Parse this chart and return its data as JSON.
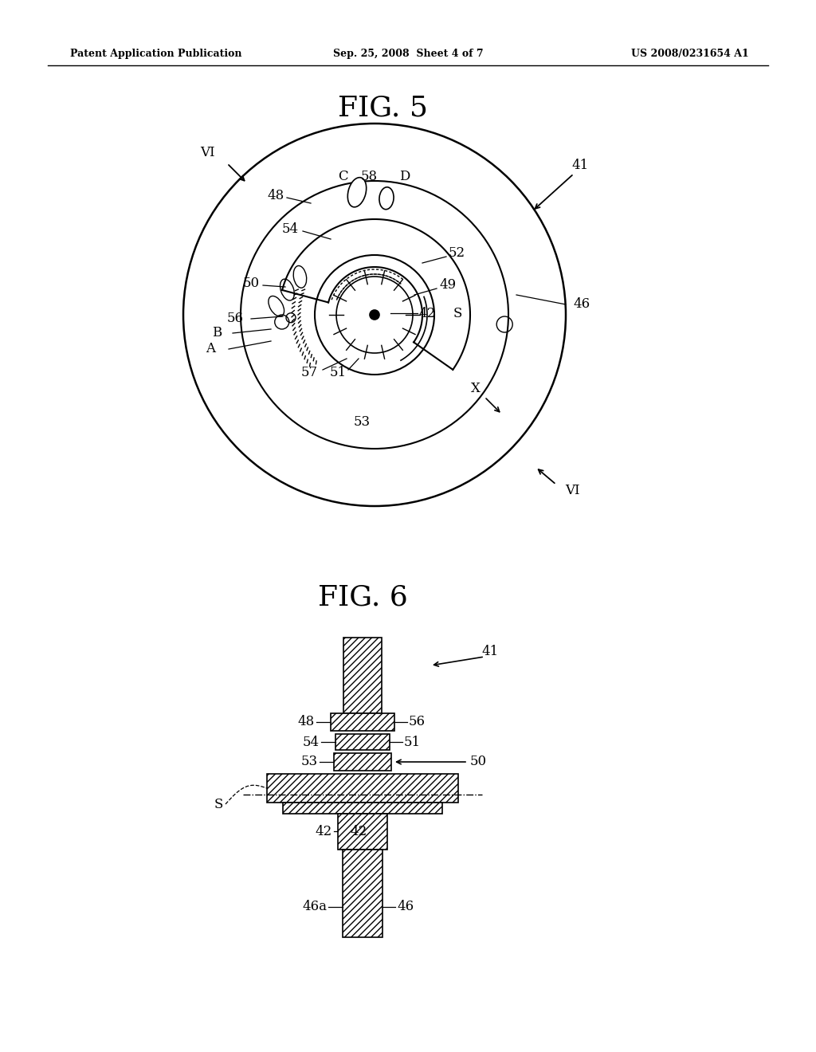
{
  "header_left": "Patent Application Publication",
  "header_mid": "Sep. 25, 2008  Sheet 4 of 7",
  "header_right": "US 2008/0231654 A1",
  "fig5_title": "FIG. 5",
  "fig6_title": "FIG. 6",
  "bg_color": "#ffffff",
  "line_color": "#000000"
}
